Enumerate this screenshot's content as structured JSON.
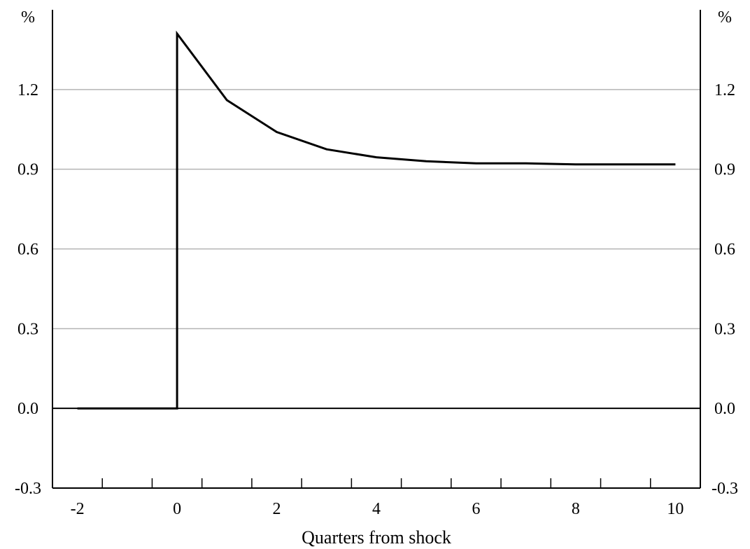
{
  "chart_data": {
    "type": "line",
    "title": "",
    "xlabel": "Quarters from shock",
    "ylabel_left": "%",
    "ylabel_right": "%",
    "xlim": [
      -2.5,
      10.5
    ],
    "ylim": [
      -0.3,
      1.5
    ],
    "x_ticks": [
      -2,
      0,
      2,
      4,
      6,
      8,
      10
    ],
    "x_tick_labels": [
      "-2",
      "0",
      "2",
      "4",
      "6",
      "8",
      "10"
    ],
    "y_ticks": [
      -0.3,
      0.0,
      0.3,
      0.6,
      0.9,
      1.2
    ],
    "y_tick_labels": [
      "-0.3",
      "0.0",
      "0.3",
      "0.6",
      "0.9",
      "1.2"
    ],
    "grid": true,
    "zero_line": true,
    "series": [
      {
        "color": "#000000",
        "x": [
          -2,
          0,
          0,
          1,
          2,
          3,
          4,
          5,
          6,
          7,
          8,
          9,
          10
        ],
        "y": [
          0.0,
          0.0,
          1.41,
          1.16,
          1.04,
          0.975,
          0.945,
          0.93,
          0.922,
          0.922,
          0.918,
          0.918,
          0.918
        ]
      }
    ]
  }
}
